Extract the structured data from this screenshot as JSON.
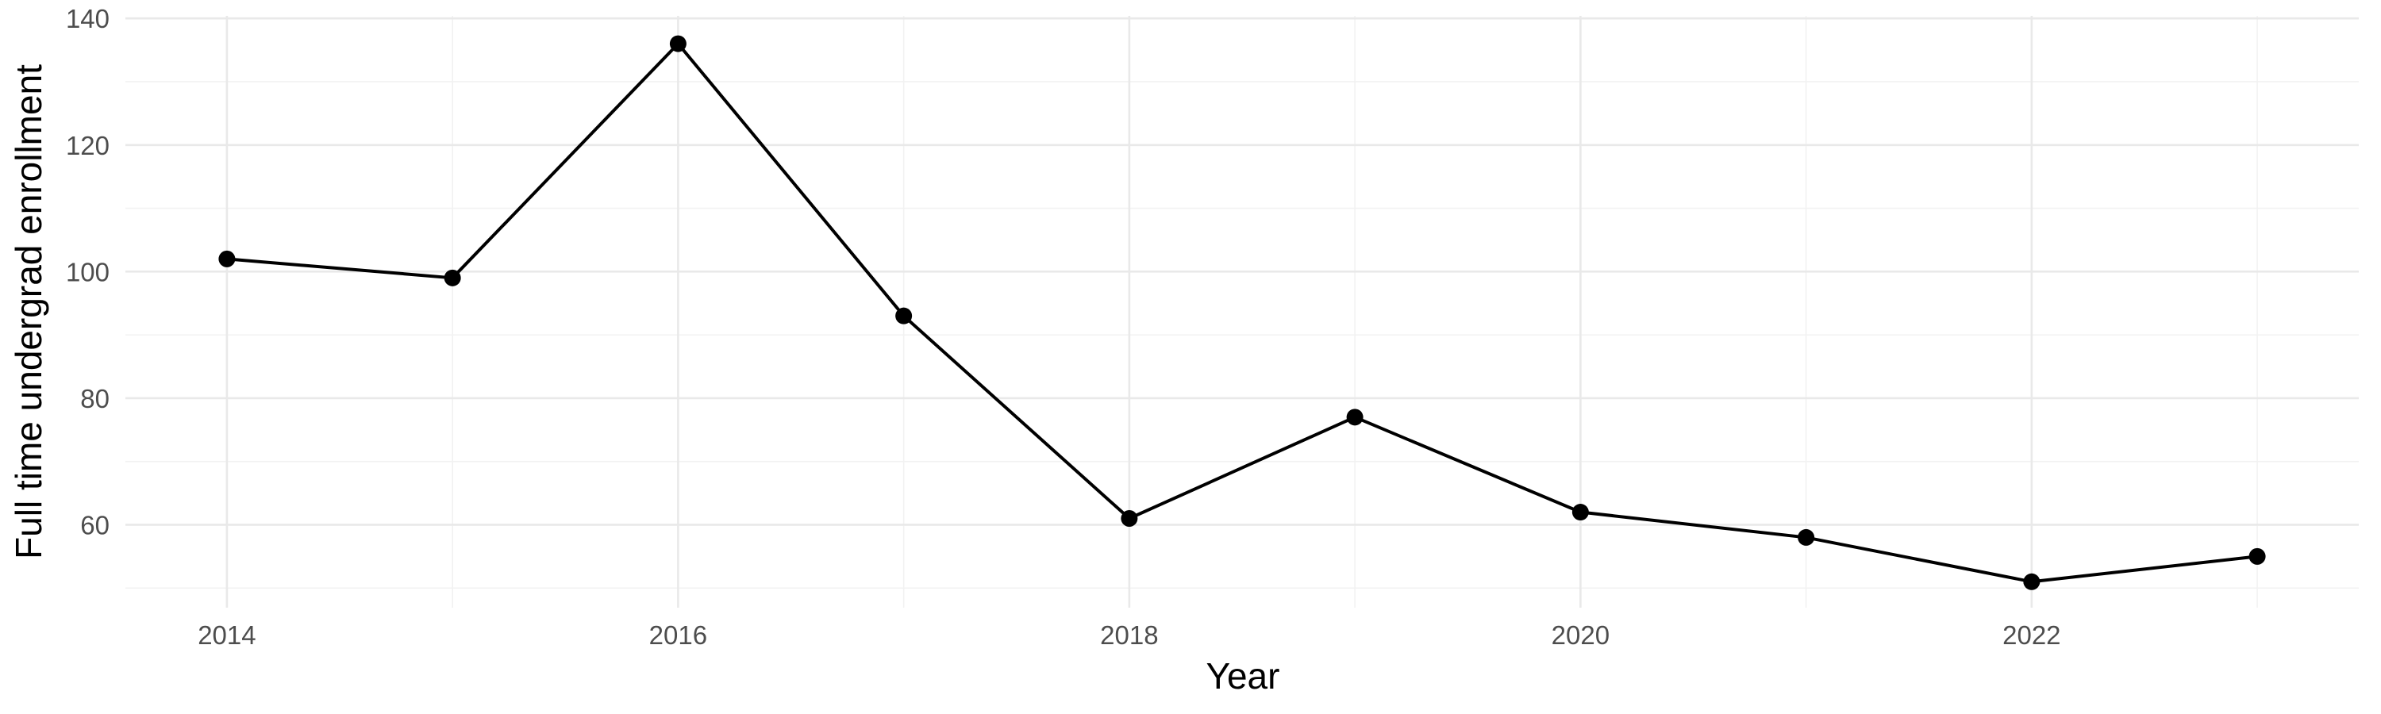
{
  "chart_data": {
    "type": "line",
    "title": "",
    "xlabel": "Year",
    "ylabel": "Full time undergrad enrollment",
    "x": [
      2014,
      2015,
      2016,
      2017,
      2018,
      2019,
      2020,
      2021,
      2022,
      2023
    ],
    "values": [
      102,
      99,
      136,
      93,
      61,
      77,
      62,
      58,
      51,
      55
    ],
    "xlim": [
      2013.55,
      2023.45
    ],
    "ylim": [
      46.9,
      140.4
    ],
    "x_major_ticks": [
      2014,
      2016,
      2018,
      2020,
      2022
    ],
    "x_tick_labels": [
      "2014",
      "2016",
      "2018",
      "2020",
      "2022"
    ],
    "x_minor_ticks": [
      2015,
      2017,
      2019,
      2021,
      2023
    ],
    "y_major_ticks": [
      60,
      80,
      100,
      120,
      140
    ],
    "y_tick_labels": [
      "60",
      "80",
      "100",
      "120",
      "140"
    ],
    "y_minor_ticks": [
      50,
      70,
      90,
      110,
      130
    ],
    "grid": true,
    "legend": "none",
    "colors": {
      "line": "#000000",
      "point": "#000000",
      "grid_major": "#e9e9e9",
      "grid_minor": "#f2f2f2",
      "tick_label": "#4d4d4d",
      "axis_title": "#000000",
      "background": "#ffffff"
    }
  }
}
